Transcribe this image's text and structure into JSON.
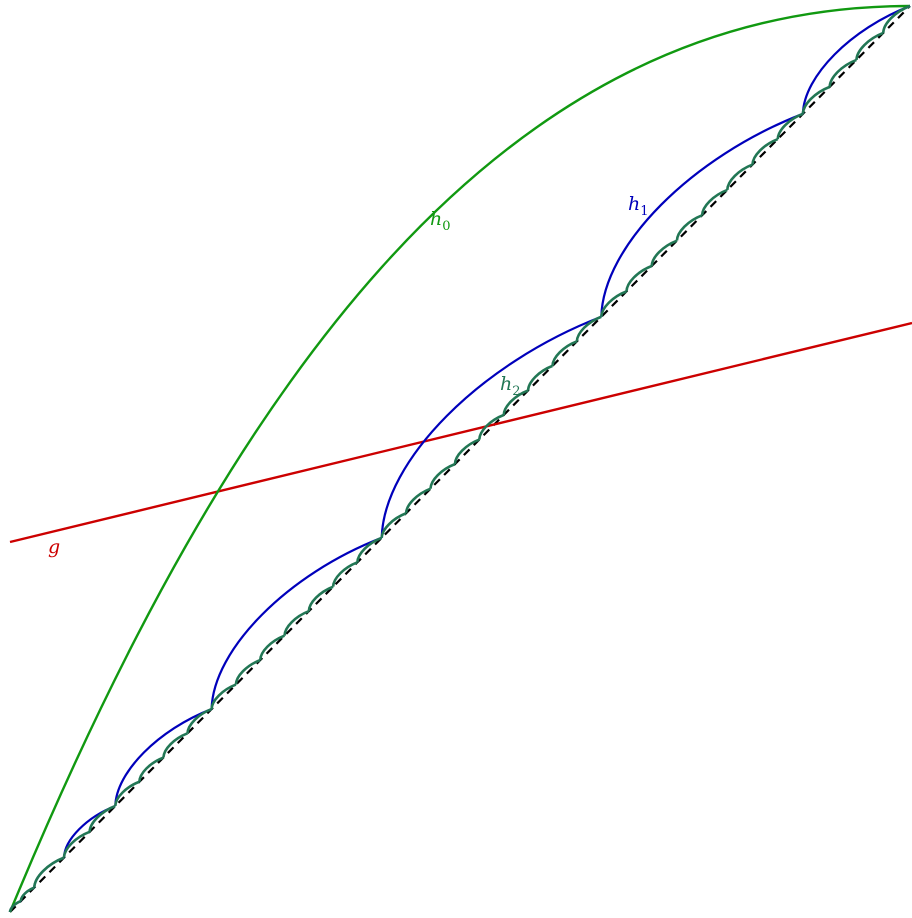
{
  "labels": {
    "g": {
      "base": "g",
      "sub": ""
    },
    "h0": {
      "base": "h",
      "sub": "0"
    },
    "h1": {
      "base": "h",
      "sub": "1"
    },
    "h2": {
      "base": "h",
      "sub": "2"
    }
  },
  "colors": {
    "g": "#cc0000",
    "h0": "#119911",
    "h1": "#0000bb",
    "h2": "#227755",
    "diagonal": "#000000"
  }
}
